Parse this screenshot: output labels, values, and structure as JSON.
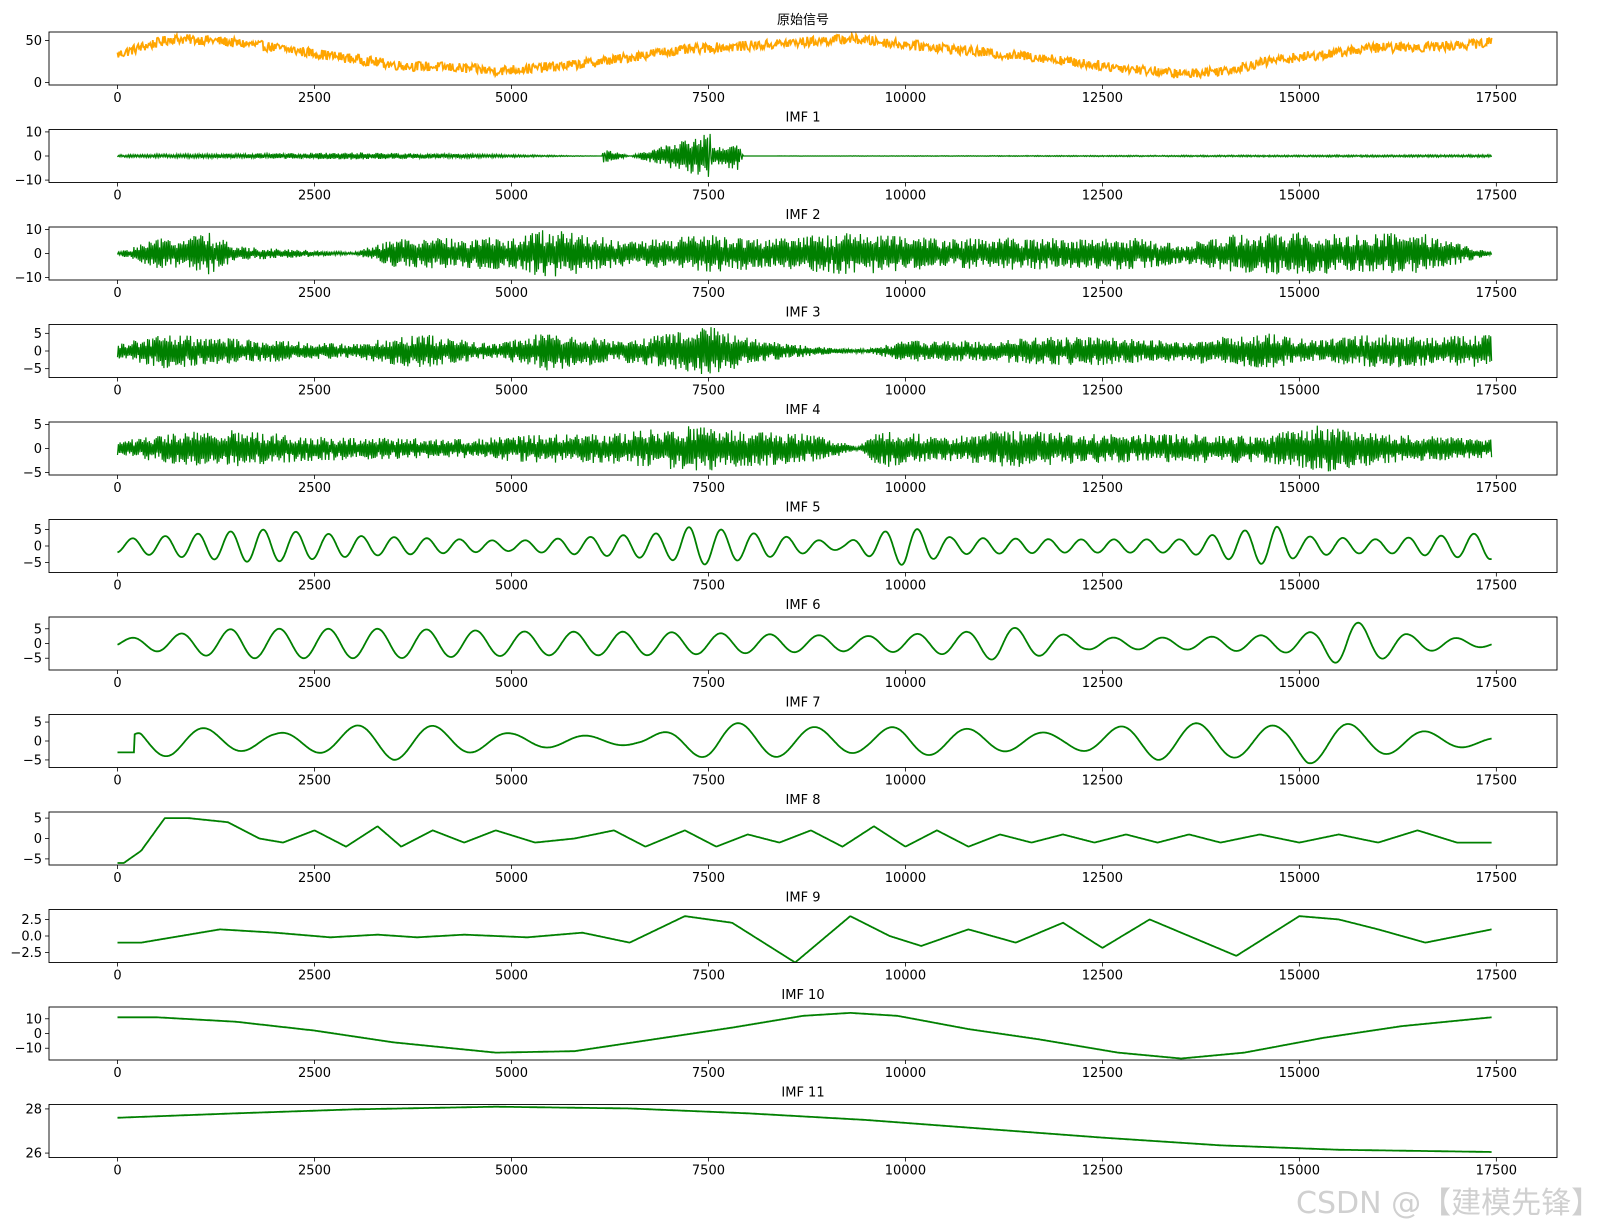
{
  "watermark": "CSDN @【建模先锋】",
  "chart_data": [
    {
      "type": "line",
      "title": "原始信号",
      "color": "#FFA500",
      "xlim": [
        -870,
        18270
      ],
      "ylim": [
        -3,
        60
      ],
      "yticks": [
        0,
        50
      ],
      "ytick_labels": [
        "0",
        "50"
      ],
      "xticks": [
        0,
        2500,
        5000,
        7500,
        10000,
        12500,
        15000,
        17500
      ],
      "xtick_labels": [
        "0",
        "2500",
        "5000",
        "7500",
        "10000",
        "12500",
        "15000",
        "17500"
      ],
      "series": [
        {
          "x": [
            0,
            300,
            700,
            1200,
            1800,
            2400,
            3000,
            3600,
            4200,
            4800,
            5300,
            5800,
            6300,
            6900,
            7500,
            8100,
            8700,
            9300,
            9900,
            10500,
            11100,
            11700,
            12300,
            12900,
            13500,
            14100,
            14700,
            15300,
            15900,
            16500,
            17000,
            17440
          ],
          "values": [
            33,
            42,
            52,
            50,
            44,
            36,
            28,
            20,
            18,
            14,
            17,
            21,
            27,
            36,
            41,
            44,
            48,
            52,
            46,
            41,
            34,
            30,
            22,
            16,
            10,
            15,
            27,
            33,
            41,
            42,
            44,
            48
          ]
        }
      ]
    },
    {
      "type": "line",
      "title": "IMF 1",
      "color": "#008000",
      "xlim": [
        -870,
        18270
      ],
      "ylim": [
        -11,
        11
      ],
      "yticks": [
        -10,
        0,
        10
      ],
      "ytick_labels": [
        "−10",
        "0",
        "10"
      ],
      "xticks": [
        0,
        2500,
        5000,
        7500,
        10000,
        12500,
        15000,
        17500
      ],
      "xtick_labels": [
        "0",
        "2500",
        "5000",
        "7500",
        "10000",
        "12500",
        "15000",
        "17500"
      ],
      "series": [
        {
          "x": [
            0,
            3050,
            6150,
            6170,
            6200,
            7500,
            7520,
            7540,
            7900,
            7920,
            7940,
            17440
          ],
          "values": [
            0.5,
            1.5,
            0,
            5,
            -3,
            10,
            -10,
            4,
            6,
            -4,
            0,
            0.5
          ]
        }
      ]
    },
    {
      "type": "line",
      "title": "IMF 2",
      "color": "#008000",
      "xlim": [
        -870,
        18270
      ],
      "ylim": [
        -11,
        11
      ],
      "yticks": [
        -10,
        0,
        10
      ],
      "ytick_labels": [
        "−10",
        "0",
        "10"
      ],
      "xticks": [
        0,
        2500,
        5000,
        7500,
        10000,
        12500,
        15000,
        17500
      ],
      "xtick_labels": [
        "0",
        "2500",
        "5000",
        "7500",
        "10000",
        "12500",
        "15000",
        "17500"
      ],
      "series": [
        {
          "x": [
            0,
            500,
            1150,
            1500,
            3000,
            3500,
            5100,
            5400,
            5800,
            6500,
            7200,
            7500,
            8300,
            9300,
            10500,
            11400,
            12200,
            12900,
            13500,
            14200,
            15000,
            15800,
            16500,
            17440
          ],
          "values": [
            0.5,
            6,
            9,
            3,
            0.5,
            6,
            7,
            10,
            9,
            5,
            7,
            8,
            6,
            9,
            6,
            7,
            6,
            7,
            4,
            8,
            9,
            8,
            9,
            0.5
          ]
        }
      ]
    },
    {
      "type": "line",
      "title": "IMF 3",
      "color": "#008000",
      "xlim": [
        -870,
        18270
      ],
      "ylim": [
        -7.5,
        7.5
      ],
      "yticks": [
        -5,
        0,
        5
      ],
      "ytick_labels": [
        "−5",
        "0",
        "5"
      ],
      "xticks": [
        0,
        2500,
        5000,
        7500,
        10000,
        12500,
        15000,
        17500
      ],
      "xtick_labels": [
        "0",
        "2500",
        "5000",
        "7500",
        "10000",
        "12500",
        "15000",
        "17500"
      ],
      "series": [
        {
          "x": [
            0,
            600,
            1100,
            2000,
            3000,
            3800,
            4800,
            5500,
            6300,
            7000,
            7500,
            8200,
            9000,
            9500,
            10000,
            11000,
            11700,
            12500,
            13300,
            14000,
            14600,
            15200,
            16000,
            16700,
            17440
          ],
          "values": [
            2,
            5,
            4,
            3,
            2,
            5,
            2,
            6,
            3,
            5,
            7,
            3,
            1,
            0.5,
            3,
            3,
            4,
            4,
            3,
            4,
            5,
            3,
            5,
            4,
            5
          ]
        }
      ]
    },
    {
      "type": "line",
      "title": "IMF 4",
      "color": "#008000",
      "xlim": [
        -870,
        18270
      ],
      "ylim": [
        -5.5,
        5.5
      ],
      "yticks": [
        -5,
        0,
        5
      ],
      "ytick_labels": [
        "−5",
        "0",
        "5"
      ],
      "xticks": [
        0,
        2500,
        5000,
        7500,
        10000,
        12500,
        15000,
        17500
      ],
      "xtick_labels": [
        "0",
        "2500",
        "5000",
        "7500",
        "10000",
        "12500",
        "15000",
        "17500"
      ],
      "series": [
        {
          "x": [
            0,
            600,
            1300,
            2600,
            4500,
            5300,
            6100,
            6800,
            7500,
            7800,
            8800,
            9400,
            9700,
            10500,
            11400,
            12300,
            13500,
            14600,
            15300,
            16100,
            17440
          ],
          "values": [
            1.5,
            3,
            4,
            2.5,
            2,
            3,
            3,
            4,
            5,
            4,
            3,
            0.5,
            4,
            2.5,
            4,
            3,
            3,
            3,
            5,
            3,
            2
          ]
        }
      ]
    },
    {
      "type": "line",
      "title": "IMF 5",
      "color": "#008000",
      "xlim": [
        -870,
        18270
      ],
      "ylim": [
        -8,
        8
      ],
      "yticks": [
        -5,
        0,
        5
      ],
      "ytick_labels": [
        "−5",
        "0",
        "5"
      ],
      "xticks": [
        0,
        2500,
        5000,
        7500,
        10000,
        12500,
        15000,
        17500
      ],
      "xtick_labels": [
        "0",
        "2500",
        "5000",
        "7500",
        "10000",
        "12500",
        "15000",
        "17500"
      ],
      "series": [
        {
          "x": [
            0,
            1800,
            3100,
            5000,
            7000,
            7300,
            8000,
            9200,
            10000,
            10600,
            12000,
            13500,
            14700,
            15000,
            16000,
            17440
          ],
          "values": [
            2,
            5,
            3,
            1.5,
            4,
            6,
            4,
            1,
            6,
            2.5,
            2,
            2,
            6,
            3,
            2,
            4
          ]
        }
      ]
    },
    {
      "type": "line",
      "title": "IMF 6",
      "color": "#008000",
      "xlim": [
        -870,
        18270
      ],
      "ylim": [
        -9,
        9
      ],
      "yticks": [
        -5,
        0,
        5
      ],
      "ytick_labels": [
        "−5",
        "0",
        "5"
      ],
      "xticks": [
        0,
        2500,
        5000,
        7500,
        10000,
        12500,
        15000,
        17500
      ],
      "xtick_labels": [
        "0",
        "2500",
        "5000",
        "7500",
        "10000",
        "12500",
        "15000",
        "17500"
      ],
      "series": [
        {
          "x": [
            0,
            1500,
            2200,
            3500,
            5300,
            6700,
            8500,
            9500,
            10800,
            11200,
            12300,
            13500,
            14800,
            15200,
            15600,
            16400,
            17440
          ],
          "values": [
            1.5,
            5,
            5,
            5,
            4,
            4,
            3,
            2.5,
            4,
            6,
            2,
            2,
            3,
            4,
            8,
            3,
            1
          ]
        }
      ]
    },
    {
      "type": "line",
      "title": "IMF 7",
      "color": "#008000",
      "xlim": [
        -870,
        18270
      ],
      "ylim": [
        -7,
        7
      ],
      "yticks": [
        -5,
        0,
        5
      ],
      "ytick_labels": [
        "−5",
        "0",
        "5"
      ],
      "xticks": [
        0,
        2500,
        5000,
        7500,
        10000,
        12500,
        15000,
        17500
      ],
      "xtick_labels": [
        "0",
        "2500",
        "5000",
        "7500",
        "10000",
        "12500",
        "15000",
        "17500"
      ],
      "series": [
        {
          "x": [
            0,
            300,
            700,
            2000,
            3500,
            4000,
            5000,
            6600,
            7600,
            9500,
            10000,
            12000,
            13200,
            14800,
            15100,
            15800,
            17440
          ],
          "values": [
            -3,
            4,
            4,
            2,
            5,
            4,
            2,
            1,
            5,
            3,
            4,
            2,
            5,
            4,
            6,
            4,
            1
          ]
        }
      ]
    },
    {
      "type": "line",
      "title": "IMF 8",
      "color": "#008000",
      "xlim": [
        -870,
        18270
      ],
      "ylim": [
        -6.5,
        6.5
      ],
      "yticks": [
        -5,
        0,
        5
      ],
      "ytick_labels": [
        "−5",
        "0",
        "5"
      ],
      "xticks": [
        0,
        2500,
        5000,
        7500,
        10000,
        12500,
        15000,
        17500
      ],
      "xtick_labels": [
        "0",
        "2500",
        "5000",
        "7500",
        "10000",
        "12500",
        "15000",
        "17500"
      ],
      "series": [
        {
          "x": [
            0,
            80,
            300,
            600,
            900,
            1400,
            1800,
            2100,
            2500,
            2900,
            3300,
            3600,
            4000,
            4400,
            4800,
            5300,
            5800,
            6300,
            6700,
            7200,
            7600,
            8000,
            8400,
            8800,
            9200,
            9600,
            10000,
            10400,
            10800,
            11200,
            11600,
            12000,
            12400,
            12800,
            13200,
            13600,
            14000,
            14500,
            15000,
            15500,
            16000,
            16500,
            17000,
            17440
          ],
          "values": [
            -6,
            -6,
            -3,
            5,
            5,
            4,
            0,
            -1,
            2,
            -2,
            3,
            -2,
            2,
            -1,
            2,
            -1,
            0,
            2,
            -2,
            2,
            -2,
            1,
            -1,
            2,
            -2,
            3,
            -2,
            2,
            -2,
            1,
            -1,
            1,
            -1,
            1,
            -1,
            1,
            -1,
            1,
            -1,
            1,
            -1,
            2,
            -1,
            -1
          ]
        }
      ]
    },
    {
      "type": "line",
      "title": "IMF 9",
      "color": "#008000",
      "xlim": [
        -870,
        18270
      ],
      "ylim": [
        -4,
        4
      ],
      "yticks": [
        -2.5,
        0,
        2.5
      ],
      "ytick_labels": [
        "−2.5",
        "0.0",
        "2.5"
      ],
      "xticks": [
        0,
        2500,
        5000,
        7500,
        10000,
        12500,
        15000,
        17500
      ],
      "xtick_labels": [
        "0",
        "2500",
        "5000",
        "7500",
        "10000",
        "12500",
        "15000",
        "17500"
      ],
      "series": [
        {
          "x": [
            0,
            300,
            1300,
            2000,
            2700,
            3300,
            3800,
            4400,
            5200,
            5900,
            6500,
            7200,
            7800,
            8600,
            9300,
            9800,
            10200,
            10800,
            11400,
            12000,
            12500,
            13100,
            13700,
            14200,
            15000,
            15500,
            16000,
            16600,
            17440
          ],
          "values": [
            -1,
            -1,
            1,
            0.5,
            -0.2,
            0.2,
            -0.2,
            0.2,
            -0.2,
            0.5,
            -1,
            3,
            2,
            -4,
            3,
            0,
            -1.5,
            1,
            -1,
            2,
            -1.8,
            2.5,
            -0.5,
            -3,
            3,
            2.5,
            1,
            -1,
            1
          ]
        }
      ]
    },
    {
      "type": "line",
      "title": "IMF 10",
      "color": "#008000",
      "xlim": [
        -870,
        18270
      ],
      "ylim": [
        -18,
        18
      ],
      "yticks": [
        -10,
        0,
        10
      ],
      "ytick_labels": [
        "−10",
        "0",
        "10"
      ],
      "xticks": [
        0,
        2500,
        5000,
        7500,
        10000,
        12500,
        15000,
        17500
      ],
      "xtick_labels": [
        "0",
        "2500",
        "5000",
        "7500",
        "10000",
        "12500",
        "15000",
        "17500"
      ],
      "series": [
        {
          "x": [
            0,
            500,
            1500,
            2500,
            3500,
            4800,
            5800,
            6800,
            7800,
            8700,
            9300,
            9900,
            10800,
            11700,
            12700,
            13500,
            14300,
            15300,
            16300,
            17440
          ],
          "values": [
            11,
            11,
            8,
            2,
            -6,
            -13,
            -12,
            -4,
            4,
            12,
            14,
            12,
            3,
            -4,
            -13,
            -17,
            -13,
            -3,
            5,
            11
          ]
        }
      ]
    },
    {
      "type": "line",
      "title": "IMF 11",
      "color": "#008000",
      "xlim": [
        -870,
        18270
      ],
      "ylim": [
        25.8,
        28.2
      ],
      "yticks": [
        26,
        28
      ],
      "ytick_labels": [
        "26",
        "28"
      ],
      "xticks": [
        0,
        2500,
        5000,
        7500,
        10000,
        12500,
        15000,
        17500
      ],
      "xtick_labels": [
        "0",
        "2500",
        "5000",
        "7500",
        "10000",
        "12500",
        "15000",
        "17500"
      ],
      "series": [
        {
          "x": [
            0,
            1500,
            3000,
            4800,
            6500,
            8000,
            9500,
            11000,
            12500,
            14000,
            15500,
            17440
          ],
          "values": [
            27.6,
            27.8,
            27.98,
            28.1,
            28.02,
            27.8,
            27.5,
            27.1,
            26.7,
            26.35,
            26.15,
            26.05
          ]
        }
      ]
    }
  ]
}
